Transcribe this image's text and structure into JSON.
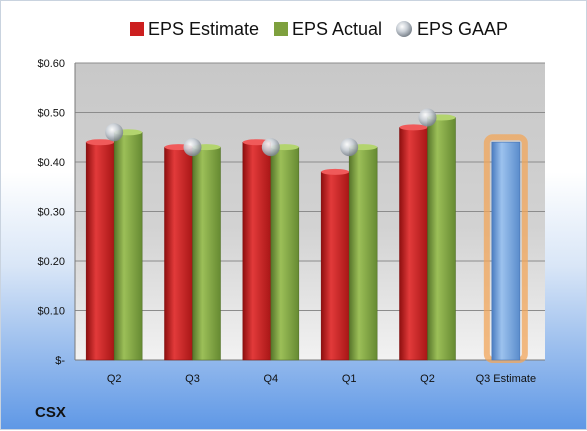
{
  "chart_data": {
    "type": "bar",
    "company": "CSX",
    "categories": [
      "Q2",
      "Q3",
      "Q4",
      "Q1",
      "Q2",
      "Q3 Estimate"
    ],
    "series": [
      {
        "name": "EPS Estimate",
        "values": [
          0.44,
          0.43,
          0.44,
          0.38,
          0.47,
          null
        ],
        "color": "#cc1f1f"
      },
      {
        "name": "EPS Actual",
        "values": [
          0.46,
          0.43,
          0.43,
          0.43,
          0.49,
          null
        ],
        "color": "#7ea03e"
      },
      {
        "name": "EPS GAAP",
        "values": [
          0.46,
          0.43,
          0.43,
          0.43,
          0.49,
          null
        ],
        "color": "#b8c0c8"
      }
    ],
    "forecast": {
      "category": "Q3 Estimate",
      "value": 0.44,
      "color": "#6f9fd8",
      "highlight": "#f2a65a"
    },
    "yticks": [
      "$-",
      "$0.10",
      "$0.20",
      "$0.30",
      "$0.40",
      "$0.50",
      "$0.60"
    ],
    "ylim": [
      0,
      0.6
    ],
    "grid": true,
    "legend": "top"
  }
}
